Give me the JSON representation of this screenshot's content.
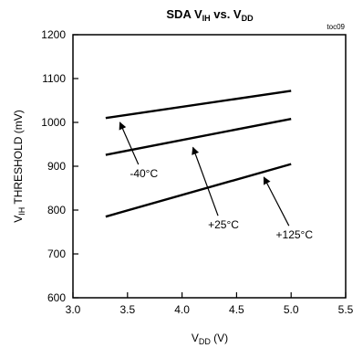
{
  "chart_data": {
    "type": "line",
    "title": {
      "prefix": "SDA V",
      "sub1": "IH",
      "mid": " vs. V",
      "sub2": "DD"
    },
    "figure_code": "toc09",
    "xlabel": {
      "prefix": "V",
      "sub": "DD",
      "suffix": " (V)"
    },
    "ylabel": {
      "prefix": "V",
      "sub": "IH",
      "suffix": " THRESHOLD (mV)"
    },
    "xlim": [
      3.0,
      5.5
    ],
    "ylim": [
      600,
      1200
    ],
    "x_ticks": [
      "3.0",
      "3.5",
      "4.0",
      "4.5",
      "5.0",
      "5.5"
    ],
    "y_ticks": [
      "600",
      "700",
      "800",
      "900",
      "1000",
      "1100",
      "1200"
    ],
    "grid": false,
    "series": [
      {
        "name": "-40°C",
        "x": [
          3.3,
          5.0
        ],
        "y": [
          1010,
          1072
        ]
      },
      {
        "name": "+25°C",
        "x": [
          3.3,
          5.0
        ],
        "y": [
          926,
          1008
        ]
      },
      {
        "name": "+125°C",
        "x": [
          3.3,
          5.0
        ],
        "y": [
          785,
          905
        ]
      }
    ],
    "annotations": [
      {
        "text": "-40°C",
        "series": "-40°C",
        "arrow_to": [
          3.43,
          1000
        ],
        "text_at": [
          3.65,
          875
        ]
      },
      {
        "text": "+25°C",
        "series": "+25°C",
        "arrow_to": [
          4.1,
          943
        ],
        "text_at": [
          4.38,
          758
        ]
      },
      {
        "text": "+125°C",
        "series": "+125°C",
        "arrow_to": [
          4.75,
          875
        ],
        "text_at": [
          5.03,
          735
        ]
      }
    ]
  }
}
